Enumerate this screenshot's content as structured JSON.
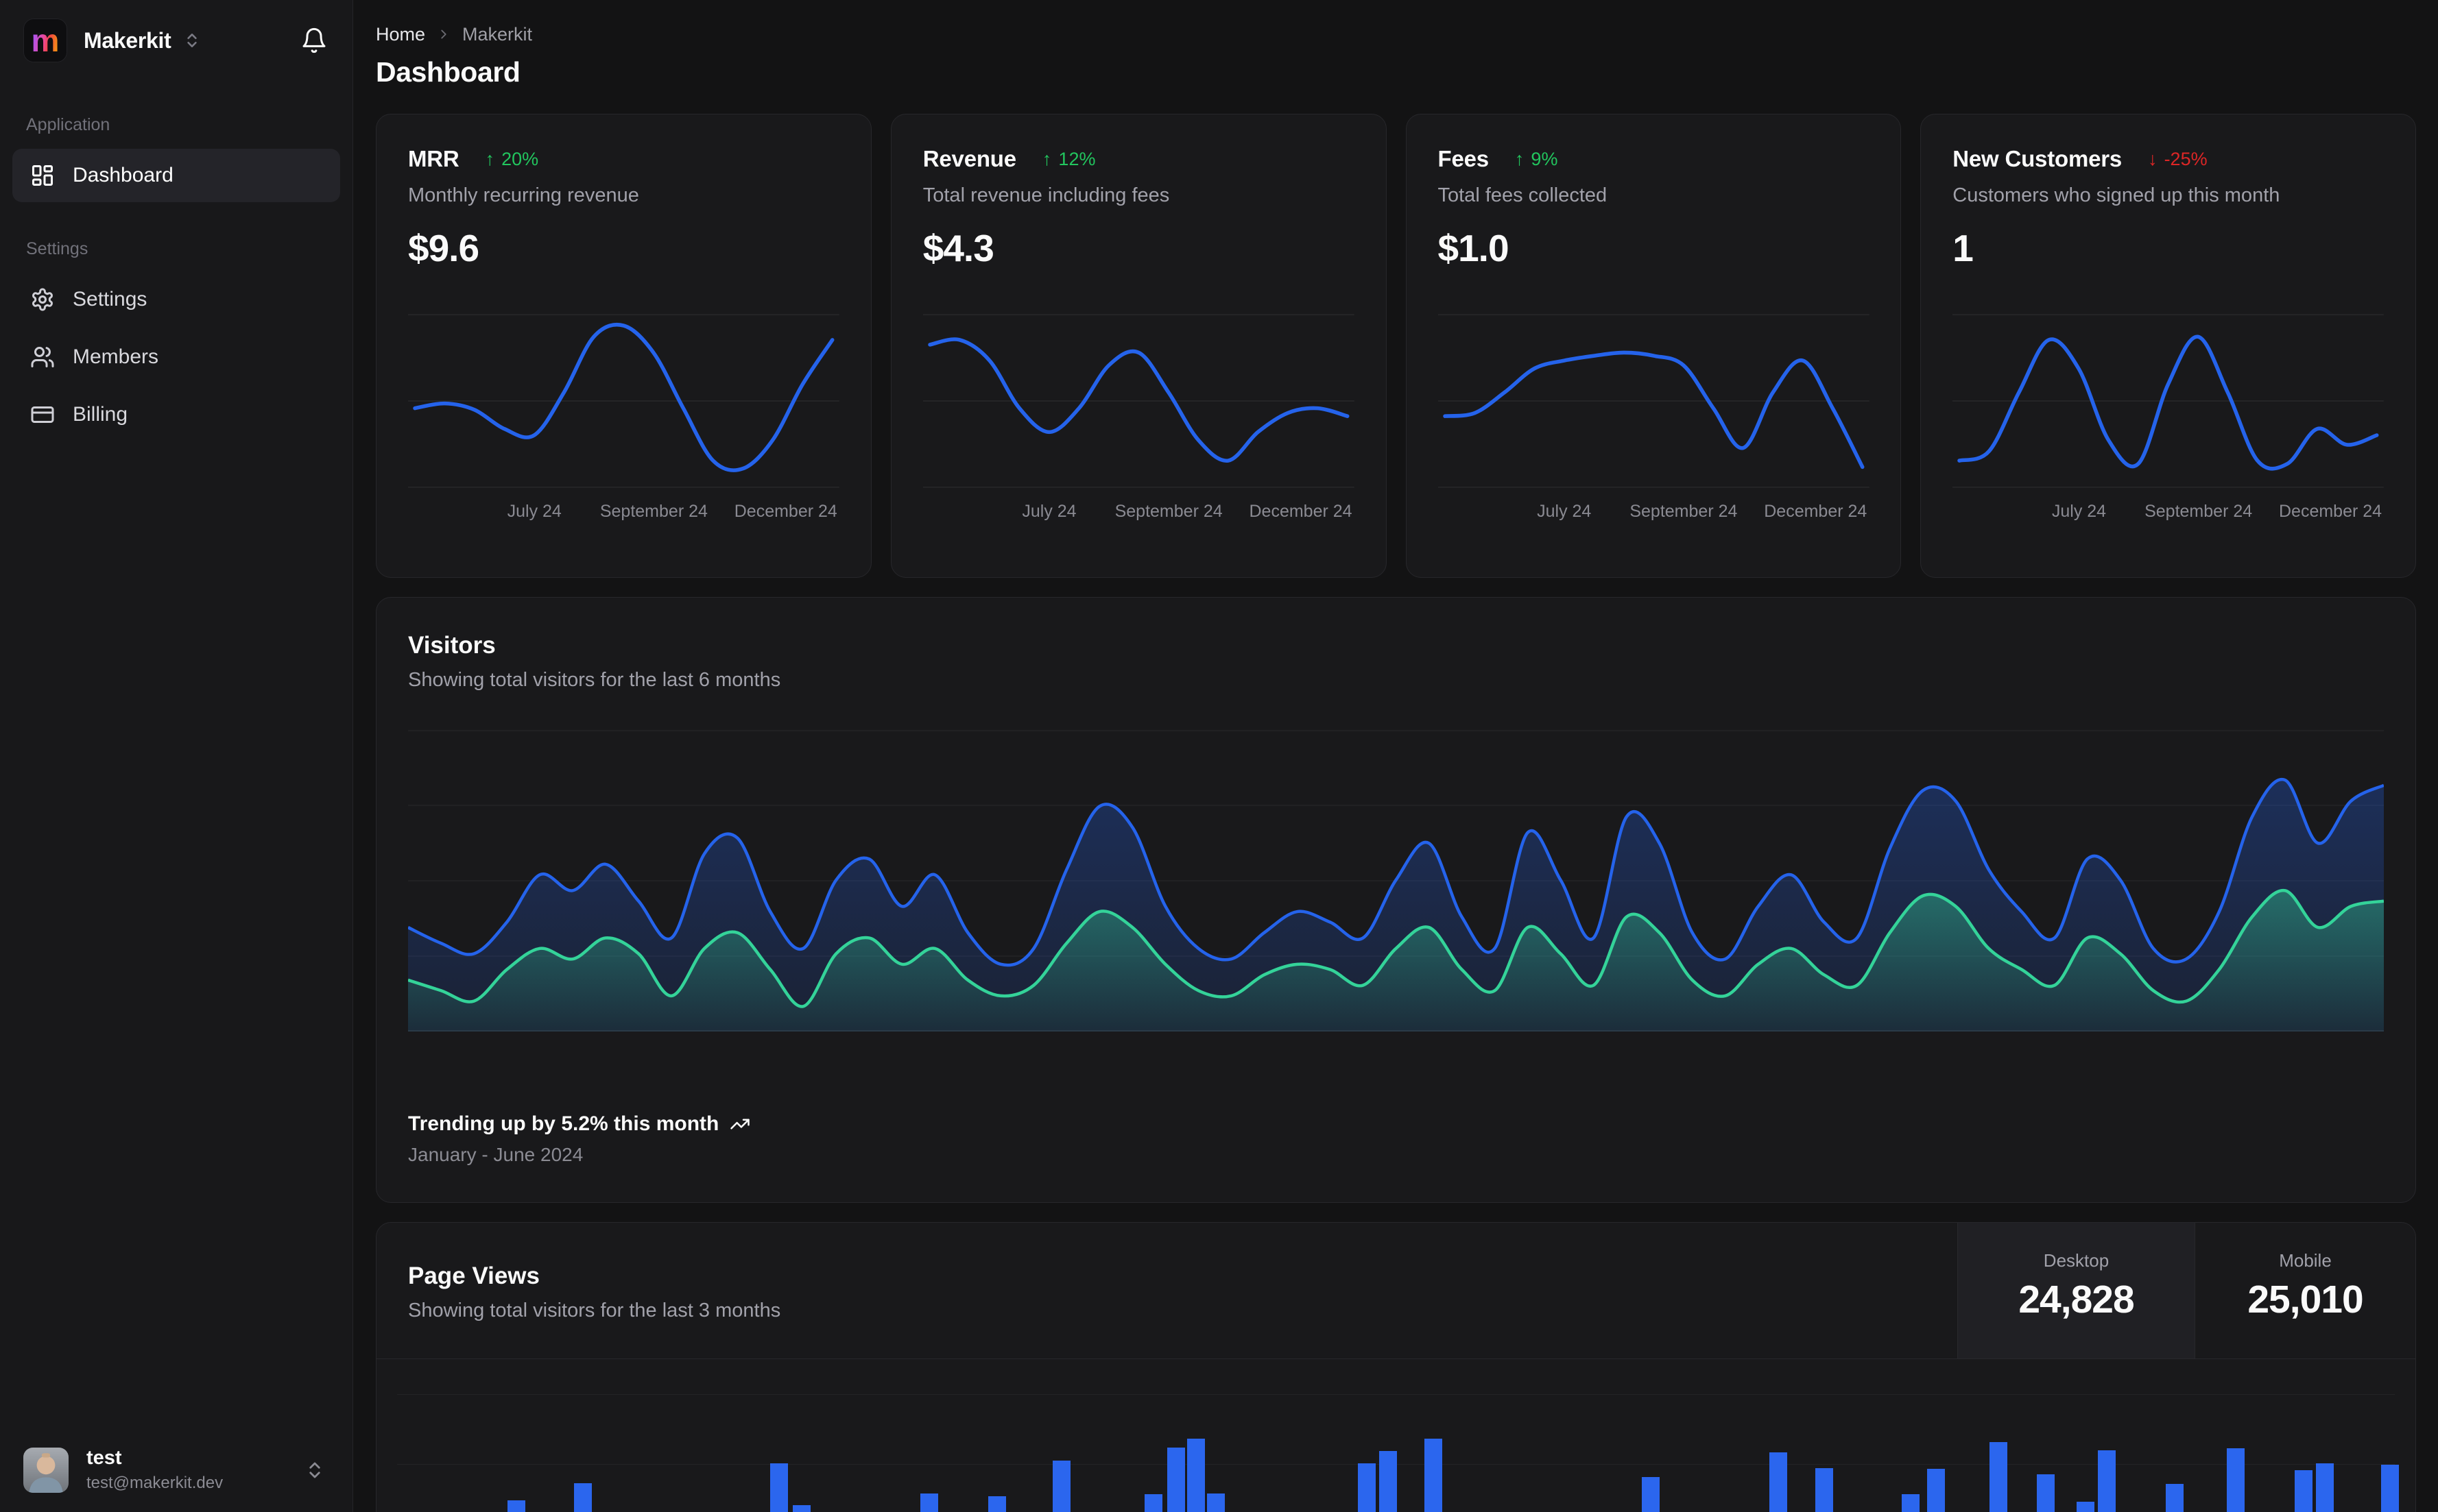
{
  "app": {
    "name": "Makerkit",
    "logo_letter": "m"
  },
  "sidebar": {
    "sections": [
      {
        "label": "Application",
        "items": [
          {
            "label": "Dashboard",
            "icon": "layout-dashboard-icon",
            "active": true
          }
        ]
      },
      {
        "label": "Settings",
        "items": [
          {
            "label": "Settings",
            "icon": "settings-gear-icon",
            "active": false
          },
          {
            "label": "Members",
            "icon": "users-icon",
            "active": false
          },
          {
            "label": "Billing",
            "icon": "credit-card-icon",
            "active": false
          }
        ]
      }
    ],
    "user": {
      "name": "test",
      "email": "test@makerkit.dev"
    }
  },
  "breadcrumb": {
    "items": [
      "Home",
      "Makerkit"
    ]
  },
  "page": {
    "title": "Dashboard"
  },
  "stat_cards": [
    {
      "title": "MRR",
      "trend": "up",
      "trend_value": "20%",
      "subtitle": "Monthly recurring revenue",
      "value": "$9.6"
    },
    {
      "title": "Revenue",
      "trend": "up",
      "trend_value": "12%",
      "subtitle": "Total revenue including fees",
      "value": "$4.3"
    },
    {
      "title": "Fees",
      "trend": "up",
      "trend_value": "9%",
      "subtitle": "Total fees collected",
      "value": "$1.0"
    },
    {
      "title": "New Customers",
      "trend": "down",
      "trend_value": "-25%",
      "subtitle": "Customers who signed up this month",
      "value": "1"
    }
  ],
  "visitors": {
    "title": "Visitors",
    "subtitle": "Showing total visitors for the last 6 months",
    "footer_bold": "Trending up by 5.2% this month",
    "footer_sub": "January - June 2024"
  },
  "page_views": {
    "title": "Page Views",
    "subtitle": "Showing total visitors for the last 3 months",
    "stats": [
      {
        "label": "Desktop",
        "value": "24,828",
        "selected": true
      },
      {
        "label": "Mobile",
        "value": "25,010",
        "selected": false
      }
    ]
  },
  "colors": {
    "accent_blue": "#2563eb",
    "bar_blue": "#2b66ee",
    "teal": "#34d399",
    "up_green": "#22c55e",
    "down_red": "#dc2626"
  },
  "chart_data": [
    {
      "type": "line",
      "name": "mrr-trend",
      "color": "#2563eb",
      "x_tick_labels": [
        "July 24",
        "September 24",
        "December 24"
      ],
      "ylim": [
        0,
        100
      ],
      "values": [
        45,
        48,
        44,
        32,
        28,
        55,
        90,
        97,
        80,
        45,
        12,
        7,
        25,
        60,
        88
      ]
    },
    {
      "type": "line",
      "name": "revenue-trend",
      "color": "#2563eb",
      "x_tick_labels": [
        "July 24",
        "September 24",
        "December 24"
      ],
      "ylim": [
        0,
        100
      ],
      "values": [
        85,
        88,
        75,
        45,
        30,
        45,
        72,
        80,
        55,
        25,
        12,
        30,
        42,
        45,
        40
      ]
    },
    {
      "type": "line",
      "name": "fees-trend",
      "color": "#2563eb",
      "x_tick_labels": [
        "July 24",
        "September 24",
        "December 24"
      ],
      "ylim": [
        0,
        100
      ],
      "values": [
        40,
        42,
        55,
        70,
        75,
        78,
        80,
        78,
        72,
        45,
        20,
        55,
        75,
        45,
        8
      ]
    },
    {
      "type": "line",
      "name": "new-customers-trend",
      "color": "#2563eb",
      "x_tick_labels": [
        "July 24",
        "September 24",
        "December 24"
      ],
      "ylim": [
        0,
        100
      ],
      "values": [
        12,
        18,
        55,
        88,
        70,
        25,
        10,
        60,
        90,
        55,
        12,
        10,
        32,
        22,
        28
      ]
    },
    {
      "type": "area",
      "name": "visitors-last-6-months",
      "x_range": "January - June 2024",
      "grid": true,
      "legend": "none",
      "ylim": [
        0,
        100
      ],
      "series": [
        {
          "name": "desktop",
          "color": "#2563eb",
          "values": [
            38,
            32,
            28,
            40,
            58,
            52,
            62,
            48,
            34,
            66,
            72,
            44,
            30,
            56,
            64,
            46,
            58,
            36,
            24,
            30,
            60,
            84,
            76,
            46,
            30,
            26,
            36,
            44,
            40,
            34,
            56,
            70,
            42,
            30,
            74,
            56,
            34,
            80,
            70,
            36,
            26,
            46,
            58,
            40,
            34,
            68,
            90,
            86,
            60,
            44,
            34,
            64,
            56,
            30,
            26,
            44,
            80,
            94,
            70,
            86,
            92
          ]
        },
        {
          "name": "mobile",
          "color": "#34d399",
          "values": [
            18,
            14,
            10,
            22,
            30,
            26,
            34,
            28,
            12,
            30,
            36,
            22,
            8,
            28,
            34,
            24,
            30,
            18,
            12,
            16,
            32,
            44,
            38,
            24,
            14,
            12,
            20,
            24,
            22,
            16,
            30,
            38,
            22,
            14,
            38,
            28,
            16,
            42,
            36,
            18,
            12,
            24,
            30,
            20,
            16,
            36,
            50,
            46,
            30,
            22,
            16,
            34,
            28,
            14,
            10,
            22,
            42,
            52,
            38,
            46,
            48
          ]
        }
      ]
    },
    {
      "type": "bar",
      "name": "page-views-last-3-months",
      "color": "#2b66ee",
      "bars": [
        [
          133,
          19
        ],
        [
          230,
          44
        ],
        [
          516,
          73
        ],
        [
          549,
          12
        ],
        [
          735,
          29
        ],
        [
          834,
          25
        ],
        [
          928,
          77
        ],
        [
          1062,
          28
        ],
        [
          1095,
          96
        ],
        [
          1124,
          109
        ],
        [
          1153,
          29
        ],
        [
          1373,
          73
        ],
        [
          1404,
          91
        ],
        [
          1470,
          109
        ],
        [
          1787,
          53
        ],
        [
          1973,
          89
        ],
        [
          2040,
          66
        ],
        [
          2166,
          28
        ],
        [
          2203,
          65
        ],
        [
          2294,
          104
        ],
        [
          2363,
          57
        ],
        [
          2421,
          17
        ],
        [
          2452,
          92
        ],
        [
          2551,
          43
        ],
        [
          2640,
          95
        ],
        [
          2739,
          63
        ],
        [
          2770,
          73
        ],
        [
          2865,
          71
        ]
      ]
    }
  ]
}
